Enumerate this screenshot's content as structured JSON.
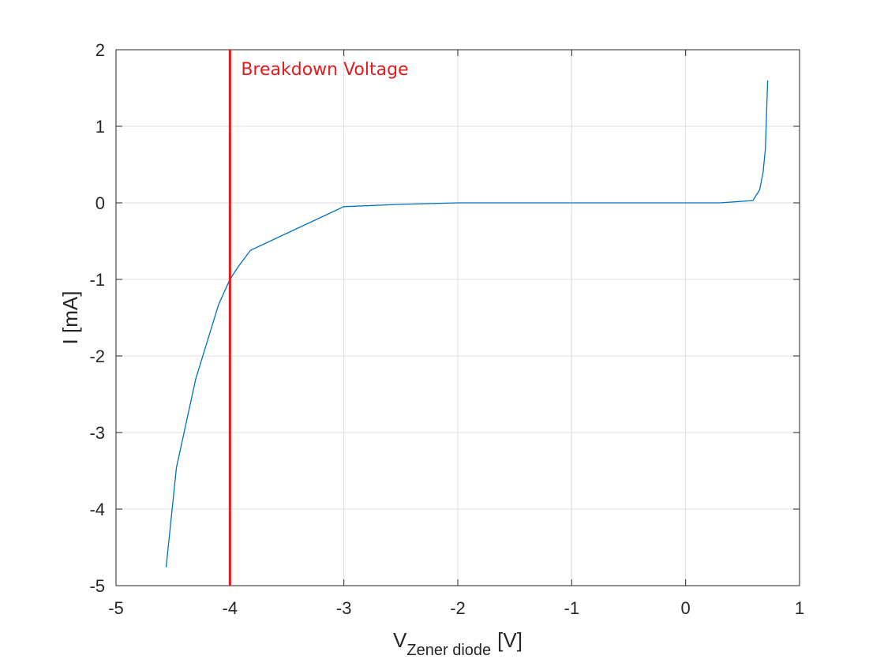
{
  "chart_data": {
    "type": "line",
    "title": "",
    "xlabel": {
      "main": "V",
      "sub": "Zener diode",
      "unit": "[V]"
    },
    "ylabel": "I [mA]",
    "xlim": [
      -5,
      1
    ],
    "ylim": [
      -5,
      2
    ],
    "xticks": [
      -5,
      -4,
      -3,
      -2,
      -1,
      0,
      1
    ],
    "yticks": [
      -5,
      -4,
      -3,
      -2,
      -1,
      0,
      1,
      2
    ],
    "grid": true,
    "series": [
      {
        "color": "#0072bd",
        "x": [
          -4.56,
          -4.47,
          -4.3,
          -4.1,
          -4.0,
          -3.93,
          -3.82,
          -3.0,
          -2.5,
          -2.0,
          -1.5,
          -1.0,
          -0.5,
          0.0,
          0.3,
          0.59,
          0.65,
          0.68,
          0.7,
          0.72
        ],
        "y": [
          -4.76,
          -3.46,
          -2.3,
          -1.33,
          -1.0,
          -0.84,
          -0.62,
          -0.05,
          -0.02,
          0.0,
          0.0,
          0.0,
          0.0,
          0.0,
          0.0,
          0.03,
          0.17,
          0.4,
          0.7,
          1.6
        ]
      }
    ],
    "annotations": [
      {
        "type": "vline",
        "x": -4,
        "color": "#e41a1c",
        "label": "Breakdown Voltage"
      }
    ]
  }
}
